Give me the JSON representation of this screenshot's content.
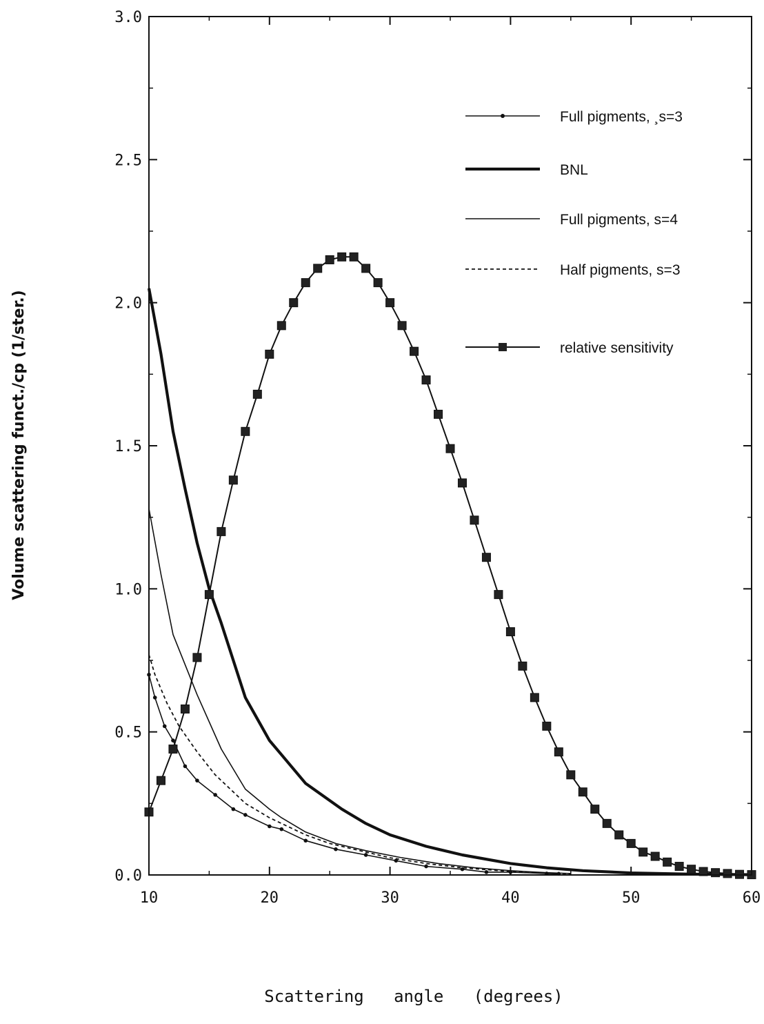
{
  "chart_data": {
    "type": "line",
    "title": "",
    "xlabel": "Scattering   angle   (degrees)",
    "ylabel": "Volume scattering funct./cp (1/ster.)",
    "xlim": [
      10,
      60
    ],
    "ylim": [
      0,
      3
    ],
    "xticks": [
      10,
      20,
      30,
      40,
      50,
      60
    ],
    "xtick_labels": [
      "10",
      "20",
      "30",
      "40",
      "50",
      "60"
    ],
    "yticks": [
      0,
      0.5,
      1,
      1.5,
      2,
      2.5,
      3
    ],
    "ytick_labels": [
      "0.0",
      "0.5",
      "1.0",
      "1.5",
      "2.0",
      "2.5",
      "3.0"
    ],
    "grid": false,
    "legend_position": "top-right",
    "series": [
      {
        "name": "Full pigments, ¸s=3",
        "style": "thin-line-dot-markers",
        "color": "#111111",
        "x": [
          10,
          10.5,
          11.3,
          12,
          13,
          14,
          15.5,
          17,
          18,
          20,
          21,
          23,
          25.5,
          28,
          30.5,
          33,
          36,
          38,
          40,
          43,
          44
        ],
        "y": [
          0.7,
          0.62,
          0.52,
          0.47,
          0.38,
          0.33,
          0.28,
          0.23,
          0.21,
          0.17,
          0.16,
          0.12,
          0.09,
          0.07,
          0.05,
          0.03,
          0.02,
          0.01,
          0.01,
          0.005,
          0.004
        ]
      },
      {
        "name": "BNL",
        "style": "thick-line",
        "color": "#111111",
        "x": [
          10,
          11,
          12,
          13,
          14,
          15,
          16,
          18,
          20,
          21,
          23,
          26,
          28,
          30,
          33,
          36,
          40,
          43,
          46,
          50,
          55,
          60
        ],
        "y": [
          2.05,
          1.82,
          1.55,
          1.35,
          1.16,
          1.0,
          0.88,
          0.62,
          0.47,
          0.42,
          0.32,
          0.23,
          0.18,
          0.14,
          0.1,
          0.07,
          0.04,
          0.025,
          0.015,
          0.007,
          0.003,
          0.001
        ]
      },
      {
        "name": "Full pigments, s=4",
        "style": "thin-line",
        "color": "#111111",
        "x": [
          10,
          11,
          12,
          14,
          16,
          18,
          20,
          21,
          23,
          25.5,
          28,
          31,
          34,
          37,
          40,
          43,
          45
        ],
        "y": [
          1.28,
          1.05,
          0.84,
          0.63,
          0.44,
          0.3,
          0.23,
          0.2,
          0.15,
          0.11,
          0.085,
          0.06,
          0.04,
          0.025,
          0.015,
          0.008,
          0.005
        ]
      },
      {
        "name": "Half pigments, s=3",
        "style": "dashed-line",
        "color": "#111111",
        "x": [
          10,
          10.5,
          11.5,
          12.5,
          14,
          15.5,
          17,
          18,
          20,
          21,
          23,
          25,
          27,
          30,
          33,
          36,
          40,
          43,
          45
        ],
        "y": [
          0.77,
          0.7,
          0.6,
          0.52,
          0.43,
          0.35,
          0.29,
          0.25,
          0.2,
          0.18,
          0.14,
          0.11,
          0.09,
          0.06,
          0.04,
          0.025,
          0.012,
          0.006,
          0.004
        ]
      },
      {
        "name": "relative sensitivity",
        "style": "thin-line-square-markers",
        "color": "#111111",
        "x": [
          10,
          11,
          12,
          13,
          14,
          15,
          16,
          17,
          18,
          19,
          20,
          21,
          22,
          23,
          24,
          25,
          26,
          27,
          28,
          29,
          30,
          31,
          32,
          33,
          34,
          35,
          36,
          37,
          38,
          39,
          40,
          41,
          42,
          43,
          44,
          45,
          46,
          47,
          48,
          49,
          50,
          51,
          52,
          53,
          54,
          55,
          56,
          57,
          58,
          59,
          60
        ],
        "y": [
          0.22,
          0.33,
          0.44,
          0.58,
          0.76,
          0.98,
          1.2,
          1.38,
          1.55,
          1.68,
          1.82,
          1.92,
          2.0,
          2.07,
          2.12,
          2.15,
          2.16,
          2.16,
          2.12,
          2.07,
          2.0,
          1.92,
          1.83,
          1.73,
          1.61,
          1.49,
          1.37,
          1.24,
          1.11,
          0.98,
          0.85,
          0.73,
          0.62,
          0.52,
          0.43,
          0.35,
          0.29,
          0.23,
          0.18,
          0.14,
          0.11,
          0.08,
          0.065,
          0.045,
          0.03,
          0.02,
          0.012,
          0.008,
          0.005,
          0.002,
          0.001
        ]
      }
    ]
  }
}
